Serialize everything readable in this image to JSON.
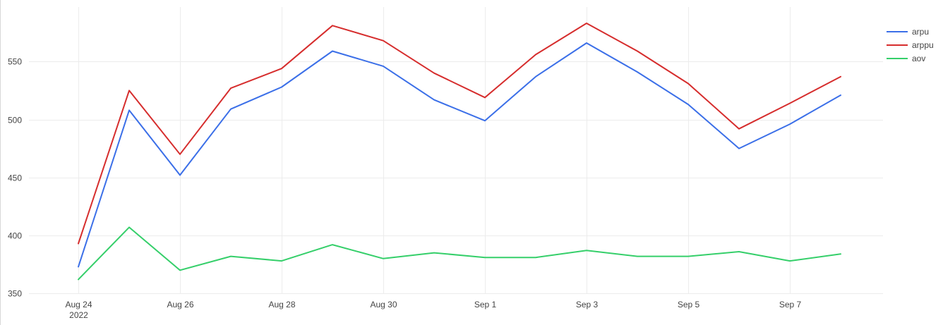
{
  "chart_data": {
    "type": "line",
    "title": "",
    "xlabel": "",
    "ylabel": "",
    "x": [
      "2022-08-24",
      "2022-08-25",
      "2022-08-26",
      "2022-08-27",
      "2022-08-28",
      "2022-08-29",
      "2022-08-30",
      "2022-08-31",
      "2022-09-01",
      "2022-09-02",
      "2022-09-03",
      "2022-09-04",
      "2022-09-05",
      "2022-09-06",
      "2022-09-07",
      "2022-09-08"
    ],
    "x_ticks": [
      {
        "date": "2022-08-24",
        "label": "Aug 24",
        "sublabel": "2022"
      },
      {
        "date": "2022-08-26",
        "label": "Aug 26"
      },
      {
        "date": "2022-08-28",
        "label": "Aug 28"
      },
      {
        "date": "2022-08-30",
        "label": "Aug 30"
      },
      {
        "date": "2022-09-01",
        "label": "Sep 1"
      },
      {
        "date": "2022-09-03",
        "label": "Sep 3"
      },
      {
        "date": "2022-09-05",
        "label": "Sep 5"
      },
      {
        "date": "2022-09-07",
        "label": "Sep 7"
      }
    ],
    "y_ticks": [
      350,
      400,
      450,
      500,
      550
    ],
    "ylim": [
      349.5,
      597
    ],
    "grid": true,
    "legend_position": "top-right",
    "series": [
      {
        "name": "arpu",
        "color": "#3b6fe8",
        "values": [
          373,
          508,
          452,
          509,
          528,
          559,
          546,
          517,
          499,
          537,
          566,
          541,
          513,
          475,
          496,
          521
        ]
      },
      {
        "name": "arppu",
        "color": "#d62d2d",
        "values": [
          393,
          525,
          470,
          527,
          544,
          581,
          568,
          540,
          519,
          556,
          583,
          559,
          531,
          492,
          514,
          537
        ]
      },
      {
        "name": "aov",
        "color": "#35cf6a",
        "values": [
          362,
          407,
          370,
          382,
          378,
          392,
          380,
          385,
          381,
          381,
          387,
          382,
          382,
          386,
          378,
          384
        ]
      }
    ]
  }
}
